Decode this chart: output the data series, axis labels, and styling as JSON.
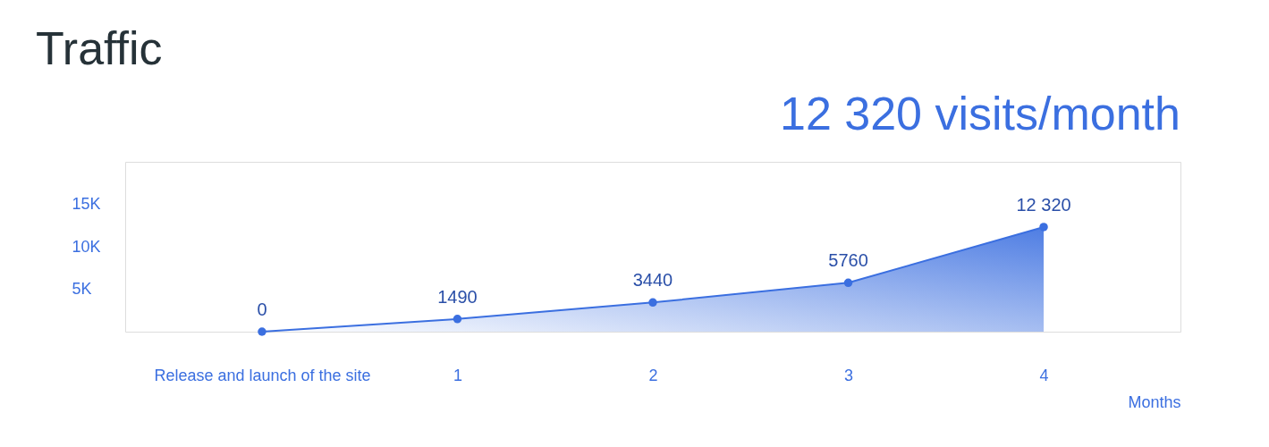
{
  "chart_data": {
    "type": "area",
    "title": "Traffic",
    "subtitle": "12 320 visits/month",
    "xlabel": "Months",
    "categories": [
      "Release and launch of the site",
      "1",
      "2",
      "3",
      "4"
    ],
    "series": [
      {
        "color": "#3b6fe0",
        "values": [
          0,
          1490,
          3440,
          5760,
          12320
        ],
        "value_labels": [
          "0",
          "1490",
          "3440",
          "5760",
          "12 320"
        ]
      }
    ],
    "ylim": [
      0,
      20000
    ],
    "yticks": [
      {
        "value": 5000,
        "label": "5K"
      },
      {
        "value": 10000,
        "label": "10K"
      },
      {
        "value": 15000,
        "label": "15K"
      }
    ],
    "grid": false,
    "marker": "circle",
    "line_style": "solid"
  }
}
